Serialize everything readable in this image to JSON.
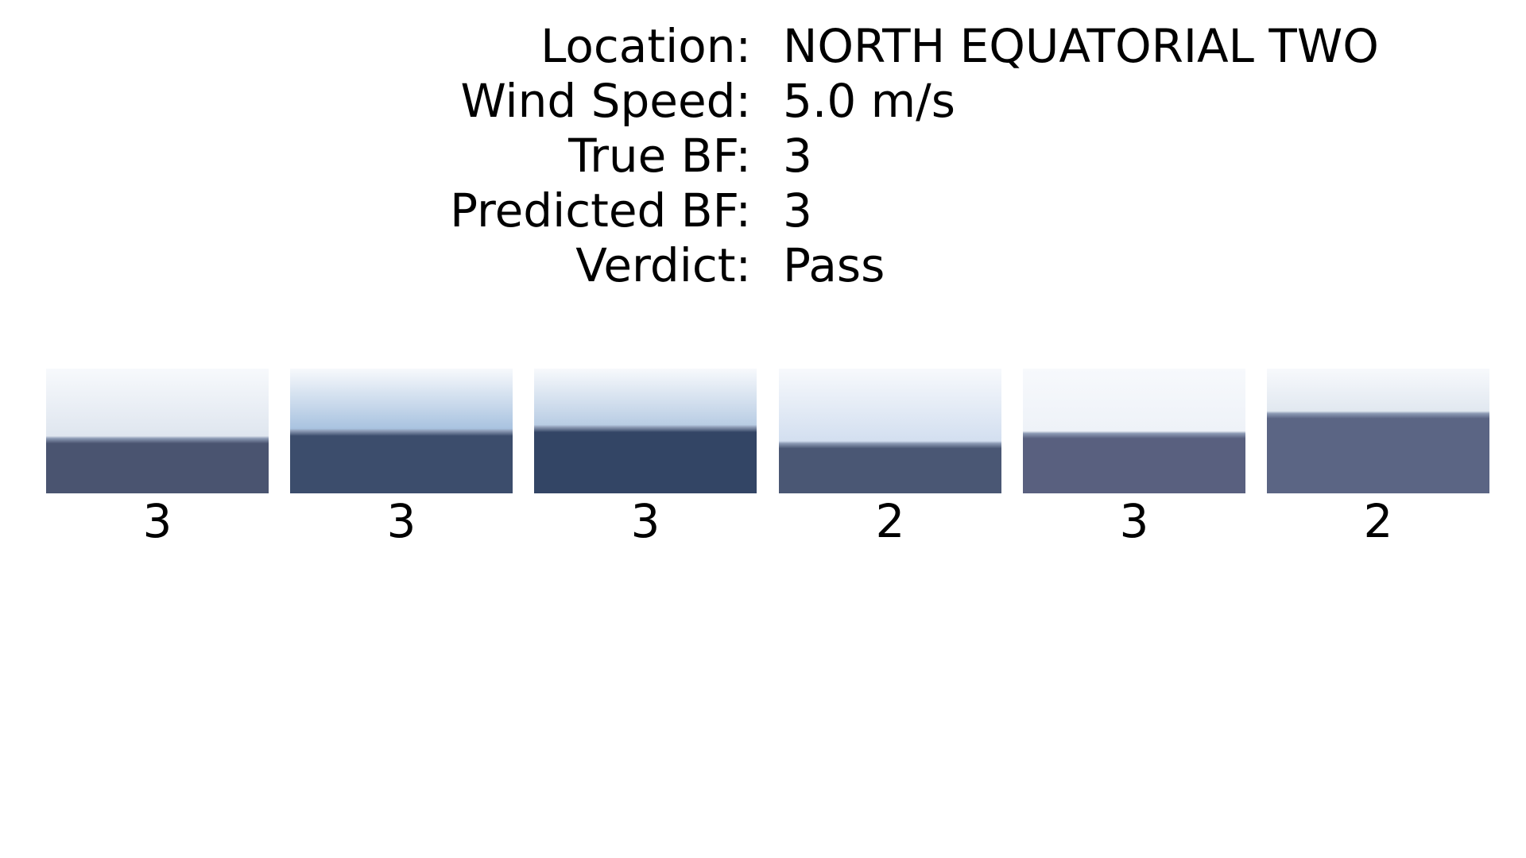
{
  "info": [
    {
      "label": "Location:",
      "value": "NORTH EQUATORIAL TWO"
    },
    {
      "label": "Wind Speed:",
      "value": "5.0 m/s"
    },
    {
      "label": "True BF:",
      "value": "3"
    },
    {
      "label": "Predicted BF:",
      "value": "3"
    },
    {
      "label": "Verdict:",
      "value": "Pass"
    }
  ],
  "thumbnails": [
    {
      "label": "3",
      "sky": "#dfe6ef",
      "sea": "#4a5470",
      "horizon": 0.56
    },
    {
      "label": "3",
      "sky": "#a9c3e0",
      "sea": "#3c4d6c",
      "horizon": 0.5
    },
    {
      "label": "3",
      "sky": "#b9cde4",
      "sea": "#334565",
      "horizon": 0.47
    },
    {
      "label": "2",
      "sky": "#d3dff0",
      "sea": "#4a5774",
      "horizon": 0.6
    },
    {
      "label": "3",
      "sky": "#eef2f8",
      "sea": "#59607f",
      "horizon": 0.52
    },
    {
      "label": "2",
      "sky": "#e1e8f0",
      "sea": "#5b6584",
      "horizon": 0.36
    }
  ]
}
